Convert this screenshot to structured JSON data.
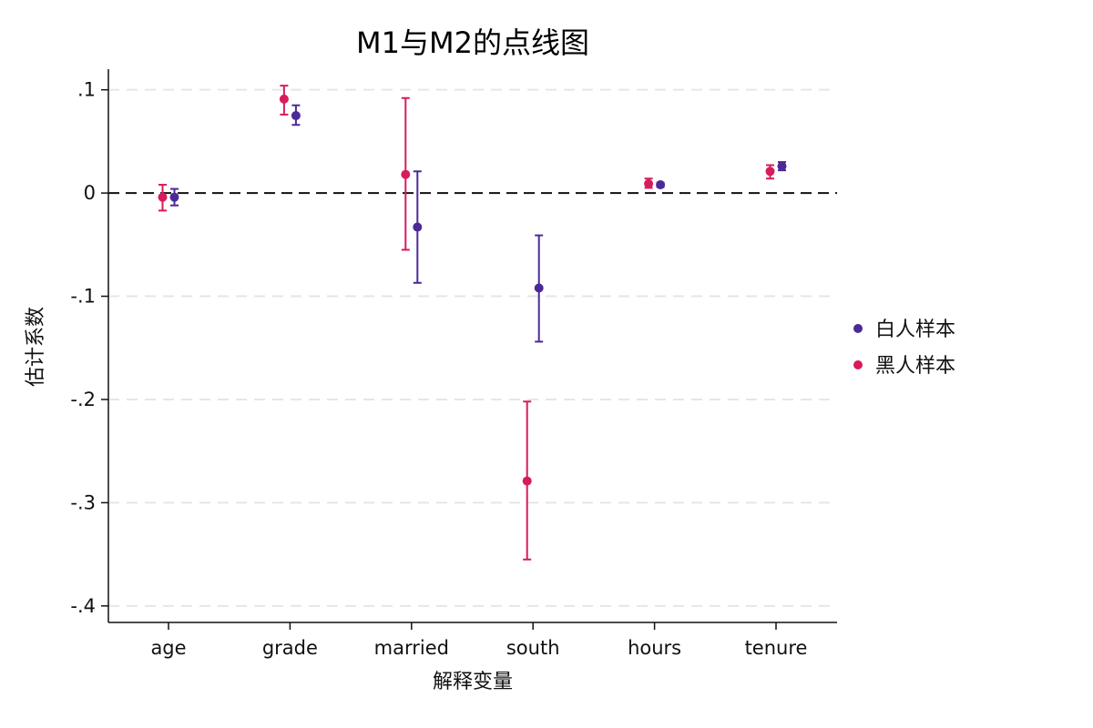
{
  "chart_data": {
    "type": "scatter",
    "subtype": "coefficient-plot-with-error-bars",
    "title": "M1与M2的点线图",
    "xlabel": "解释变量",
    "ylabel": "估计系数",
    "categories": [
      "age",
      "grade",
      "married",
      "south",
      "hours",
      "tenure"
    ],
    "ylim": [
      -0.416,
      0.12
    ],
    "yticks": [
      0.1,
      0,
      -0.1,
      -0.2,
      -0.3,
      -0.4
    ],
    "ytick_labels": [
      ".1",
      "0",
      "-.1",
      "-.2",
      "-.3",
      "-.4"
    ],
    "reference_line": 0,
    "grid": true,
    "legend_position": "right",
    "series": [
      {
        "name": "白人样本",
        "color": "#4b2a96",
        "values": [
          -0.004,
          0.075,
          -0.033,
          -0.092,
          0.008,
          0.026
        ],
        "ci_low": [
          -0.012,
          0.066,
          -0.087,
          -0.144,
          0.006,
          0.022
        ],
        "ci_high": [
          0.004,
          0.085,
          0.021,
          -0.041,
          0.01,
          0.03
        ]
      },
      {
        "name": "黑人样本",
        "color": "#d81b5c",
        "values": [
          -0.004,
          0.091,
          0.018,
          -0.279,
          0.009,
          0.021
        ],
        "ci_low": [
          -0.017,
          0.076,
          -0.055,
          -0.355,
          0.005,
          0.014
        ],
        "ci_high": [
          0.008,
          0.104,
          0.092,
          -0.202,
          0.014,
          0.027
        ]
      }
    ]
  }
}
